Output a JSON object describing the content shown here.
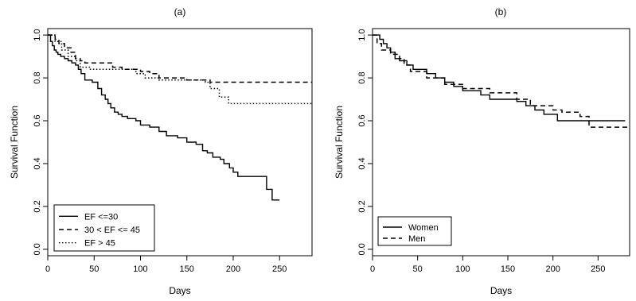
{
  "chart_data": [
    {
      "type": "line",
      "title": "(a)",
      "xlabel": "Days",
      "ylabel": "Survival Function",
      "xlim": [
        0,
        285
      ],
      "ylim": [
        -0.03,
        1.03
      ],
      "xticks": [
        "0",
        "50",
        "100",
        "150",
        "200",
        "250"
      ],
      "yticks": [
        "0.0",
        "0.2",
        "0.4",
        "0.6",
        "0.8",
        "1.0"
      ],
      "step": true,
      "legend": "bottom-left",
      "series": [
        {
          "name": "EF <=30",
          "style": "solid",
          "x": [
            0,
            3,
            5,
            7,
            9,
            11,
            14,
            18,
            22,
            26,
            30,
            33,
            36,
            40,
            48,
            54,
            58,
            62,
            65,
            68,
            72,
            76,
            80,
            86,
            95,
            100,
            110,
            120,
            128,
            140,
            150,
            160,
            167,
            172,
            178,
            186,
            190,
            196,
            200,
            205,
            212,
            236,
            242,
            250
          ],
          "y": [
            1.0,
            0.97,
            0.95,
            0.93,
            0.92,
            0.91,
            0.9,
            0.89,
            0.88,
            0.87,
            0.86,
            0.84,
            0.82,
            0.79,
            0.78,
            0.75,
            0.72,
            0.7,
            0.68,
            0.66,
            0.64,
            0.63,
            0.62,
            0.61,
            0.6,
            0.58,
            0.57,
            0.55,
            0.53,
            0.52,
            0.5,
            0.49,
            0.46,
            0.45,
            0.43,
            0.42,
            0.4,
            0.38,
            0.36,
            0.34,
            0.34,
            0.28,
            0.23,
            0.23
          ]
        },
        {
          "name": "30 < EF <= 45",
          "style": "dashed",
          "x": [
            0,
            8,
            12,
            18,
            25,
            30,
            35,
            40,
            48,
            70,
            80,
            100,
            110,
            120,
            150,
            175,
            285
          ],
          "y": [
            1.0,
            0.98,
            0.96,
            0.94,
            0.92,
            0.89,
            0.88,
            0.87,
            0.87,
            0.85,
            0.84,
            0.83,
            0.82,
            0.8,
            0.79,
            0.78,
            0.78
          ]
        },
        {
          "name": "EF > 45",
          "style": "dotted",
          "x": [
            0,
            8,
            15,
            22,
            30,
            35,
            45,
            95,
            105,
            120,
            170,
            175,
            185,
            195,
            285
          ],
          "y": [
            1.0,
            0.97,
            0.93,
            0.9,
            0.88,
            0.85,
            0.84,
            0.82,
            0.8,
            0.79,
            0.78,
            0.75,
            0.71,
            0.68,
            0.68
          ]
        }
      ]
    },
    {
      "type": "line",
      "title": "(b)",
      "xlabel": "Days",
      "ylabel": "Survival Function",
      "xlim": [
        0,
        285
      ],
      "ylim": [
        -0.03,
        1.03
      ],
      "xticks": [
        "0",
        "50",
        "100",
        "150",
        "200",
        "250"
      ],
      "yticks": [
        "0.0",
        "0.2",
        "0.4",
        "0.6",
        "0.8",
        "1.0"
      ],
      "step": true,
      "legend": "bottom-left",
      "series": [
        {
          "name": "Women",
          "style": "solid",
          "x": [
            0,
            8,
            12,
            16,
            20,
            25,
            30,
            38,
            45,
            60,
            70,
            80,
            90,
            100,
            120,
            130,
            160,
            170,
            180,
            190,
            205,
            240,
            280
          ],
          "y": [
            1.0,
            0.98,
            0.96,
            0.94,
            0.92,
            0.89,
            0.88,
            0.86,
            0.84,
            0.82,
            0.8,
            0.78,
            0.76,
            0.74,
            0.72,
            0.7,
            0.69,
            0.67,
            0.65,
            0.63,
            0.6,
            0.6,
            0.6
          ]
        },
        {
          "name": "Men",
          "style": "dashed",
          "x": [
            0,
            5,
            10,
            20,
            30,
            35,
            42,
            60,
            80,
            100,
            130,
            160,
            175,
            200,
            210,
            230,
            240,
            285
          ],
          "y": [
            1.0,
            0.96,
            0.93,
            0.91,
            0.89,
            0.86,
            0.83,
            0.8,
            0.77,
            0.75,
            0.73,
            0.7,
            0.67,
            0.65,
            0.64,
            0.62,
            0.57,
            0.57
          ]
        }
      ]
    }
  ]
}
